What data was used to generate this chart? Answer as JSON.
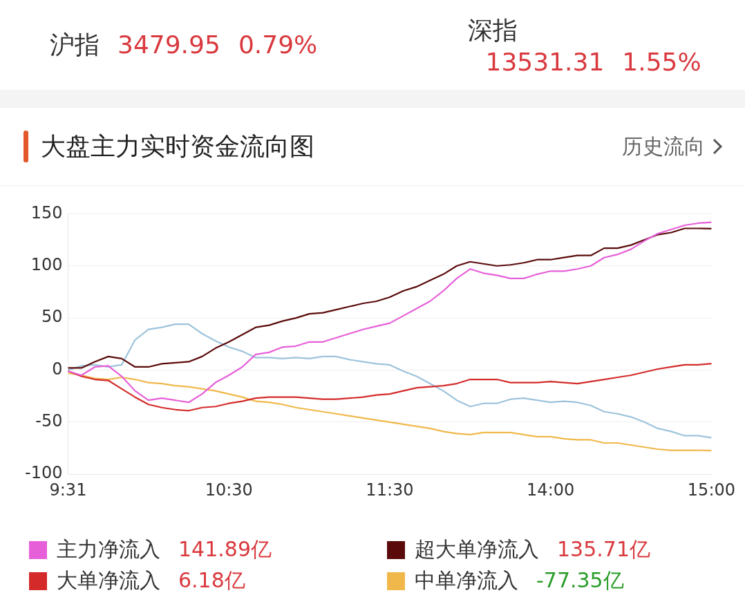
{
  "chart_data": {
    "type": "line",
    "title": "大盘主力实时资金流向图",
    "annotations": [
      "沪指",
      "3479.95",
      "0.79%",
      "深指",
      "13531.31",
      "1.55%",
      "历史流向",
      "141.89亿",
      "135.71亿",
      "6.18亿",
      "-77.35亿"
    ],
    "categories": [
      "9:31",
      null,
      null,
      null,
      null,
      null,
      null,
      null,
      null,
      null,
      null,
      null,
      "10:30",
      null,
      null,
      null,
      null,
      null,
      null,
      null,
      null,
      null,
      null,
      null,
      "11:30",
      null,
      null,
      null,
      null,
      null,
      null,
      null,
      null,
      null,
      null,
      null,
      "14:00",
      null,
      null,
      null,
      null,
      null,
      null,
      null,
      null,
      null,
      null,
      null,
      "15:00"
    ],
    "series": [
      {
        "name": "主力净流入",
        "color": "#e65fd8",
        "values": [
          -1,
          -5,
          3,
          4,
          -6,
          -20,
          -29,
          -27,
          -29,
          -31,
          -23,
          -12,
          -5,
          3,
          15,
          17,
          22,
          23,
          27,
          27,
          31,
          35,
          39,
          42,
          45,
          52,
          59,
          66,
          76,
          88,
          97,
          93,
          91,
          88,
          88,
          92,
          95,
          95,
          97,
          100,
          108,
          111,
          116,
          124,
          131,
          135,
          139,
          141,
          141.89
        ]
      },
      {
        "name": "超大单净流入",
        "color": "#5a0a0a",
        "values": [
          2,
          2,
          8,
          13,
          11,
          3,
          3,
          6,
          7,
          8,
          13,
          21,
          27,
          34,
          41,
          43,
          47,
          50,
          54,
          55,
          58,
          61,
          64,
          66,
          70,
          76,
          80,
          86,
          92,
          100,
          104,
          102,
          100,
          101,
          103,
          106,
          106,
          108,
          110,
          110,
          117,
          117,
          120,
          125,
          130,
          132,
          136,
          136,
          135.71
        ]
      },
      {
        "name": "大单净流入",
        "color": "#d42a2a",
        "values": [
          -1,
          -6,
          -9,
          -10,
          -18,
          -26,
          -33,
          -36,
          -38,
          -39,
          -36,
          -35,
          -32,
          -30,
          -27,
          -26,
          -26,
          -26,
          -27,
          -28,
          -28,
          -27,
          -26,
          -24,
          -23,
          -20,
          -17,
          -16,
          -15,
          -13,
          -9,
          -9,
          -9,
          -12,
          -12,
          -12,
          -11,
          -12,
          -13,
          -11,
          -9,
          -7,
          -5,
          -2,
          1,
          3,
          5,
          5,
          6.18
        ]
      },
      {
        "name": "中单净流入",
        "color": "#f0b84a",
        "values": [
          -3,
          -5,
          -8,
          -9,
          -7,
          -9,
          -12,
          -13,
          -15,
          -16,
          -18,
          -20,
          -23,
          -26,
          -30,
          -31,
          -33,
          -36,
          -38,
          -40,
          -42,
          -44,
          -46,
          -48,
          -50,
          -52,
          -54,
          -56,
          -59,
          -61,
          -62,
          -60,
          -60,
          -60,
          -62,
          -64,
          -64,
          -66,
          -67,
          -67,
          -70,
          -70,
          -72,
          -74,
          -76,
          -77,
          -77,
          -77,
          -77.35
        ]
      },
      {
        "color": "#9dc3dc",
        "values": [
          0,
          4,
          5,
          3,
          5,
          29,
          39,
          41,
          44,
          44,
          35,
          28,
          22,
          18,
          12,
          12,
          11,
          12,
          11,
          13,
          13,
          10,
          8,
          6,
          5,
          -1,
          -6,
          -13,
          -20,
          -29,
          -35,
          -32,
          -32,
          -28,
          -27,
          -29,
          -31,
          -30,
          -31,
          -34,
          -40,
          -42,
          -45,
          -50,
          -56,
          -59,
          -63,
          -63,
          -65
        ]
      }
    ],
    "ylim": [
      -100,
      150
    ],
    "yticks": [
      -100,
      -50,
      0,
      50,
      100,
      150
    ],
    "grid": "y",
    "legend": "bottom",
    "marker": "none",
    "line_style": "solid"
  }
}
